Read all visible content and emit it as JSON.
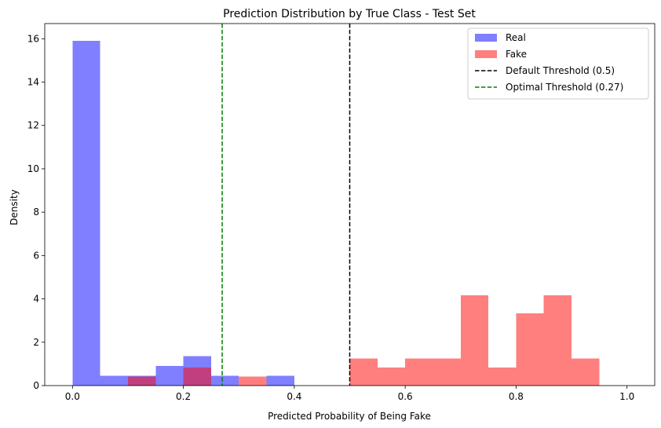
{
  "chart_data": {
    "type": "histogram",
    "title": "Prediction Distribution by True Class - Test Set",
    "xlabel": "Predicted Probability of Being Fake",
    "ylabel": "Density",
    "xlim": [
      -0.05,
      1.05
    ],
    "ylim": [
      0,
      16.7
    ],
    "xticks": [
      "0.0",
      "0.2",
      "0.4",
      "0.6",
      "0.8",
      "1.0"
    ],
    "yticks": [
      "0",
      "2",
      "4",
      "6",
      "8",
      "10",
      "12",
      "14",
      "16"
    ],
    "grid": false,
    "legend_position": "top-right",
    "series": [
      {
        "name": "Real",
        "color": "#8080ff",
        "bin_width": 0.05,
        "bins": [
          {
            "x0": 0.0,
            "value": 15.9
          },
          {
            "x0": 0.05,
            "value": 0.45
          },
          {
            "x0": 0.1,
            "value": 0.45
          },
          {
            "x0": 0.15,
            "value": 0.9
          },
          {
            "x0": 0.2,
            "value": 1.36
          },
          {
            "x0": 0.25,
            "value": 0.45
          },
          {
            "x0": 0.35,
            "value": 0.45
          }
        ]
      },
      {
        "name": "Fake",
        "color": "#ff8080",
        "bin_width": 0.05,
        "bins": [
          {
            "x0": 0.1,
            "value": 0.42
          },
          {
            "x0": 0.2,
            "value": 0.83
          },
          {
            "x0": 0.3,
            "value": 0.42
          },
          {
            "x0": 0.5,
            "value": 1.25
          },
          {
            "x0": 0.55,
            "value": 0.83
          },
          {
            "x0": 0.6,
            "value": 1.25
          },
          {
            "x0": 0.65,
            "value": 1.25
          },
          {
            "x0": 0.7,
            "value": 4.17
          },
          {
            "x0": 0.75,
            "value": 0.83
          },
          {
            "x0": 0.8,
            "value": 3.33
          },
          {
            "x0": 0.85,
            "value": 4.17
          },
          {
            "x0": 0.9,
            "value": 1.25
          }
        ]
      }
    ],
    "reference_lines": [
      {
        "name": "Default Threshold (0.5)",
        "x": 0.5,
        "color": "#000000",
        "style": "dashed"
      },
      {
        "name": "Optimal Threshold (0.27)",
        "x": 0.27,
        "color": "#008000",
        "style": "dashed"
      }
    ]
  }
}
